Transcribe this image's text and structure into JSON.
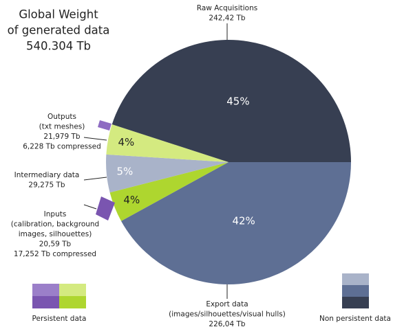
{
  "chart_data": {
    "type": "pie",
    "title_lines": [
      "Global Weight",
      "of generated data",
      "540.304 Tb"
    ],
    "categories": [
      "Export data",
      "Inputs",
      "Intermediary data",
      "Outputs",
      "Raw Acquisitions"
    ],
    "values": [
      42,
      4,
      5,
      4,
      45
    ],
    "value_labels": [
      "42%",
      "4%",
      "5%",
      "4%",
      "45%"
    ],
    "colors": [
      "#5e6f94",
      "#aed62f",
      "#a9b3c9",
      "#d4ea80",
      "#373f52"
    ],
    "label_colors": [
      "#ffffff",
      "#222222",
      "#ffffff",
      "#222222",
      "#ffffff"
    ],
    "details": [
      [
        "(images/silhouettes/visual hulls)",
        "226,04 Tb"
      ],
      [
        "(calibration, background",
        "images, silhouettes)",
        "20,59 Tb",
        "17,252 Tb compressed"
      ],
      [
        "29,275 Tb"
      ],
      [
        "(txt meshes)",
        "21,979 Tb",
        "6,228 Tb compressed"
      ],
      [
        "242,42 Tb"
      ]
    ],
    "legend": {
      "persistent": "Persistent data",
      "non_persistent": "Non persistent data"
    }
  }
}
